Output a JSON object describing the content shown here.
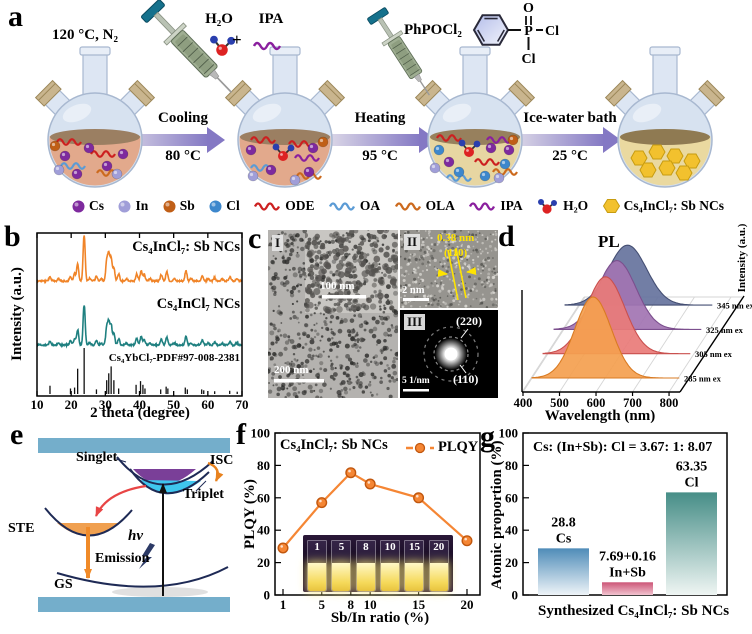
{
  "panels": {
    "a": "a",
    "b": "b",
    "c": "c",
    "d": "d",
    "e": "e",
    "f": "f",
    "g": "g"
  },
  "panel_a": {
    "condition": "120 °C, N₂",
    "h2o_label": "H₂O",
    "plus": "+",
    "ipa_label": "IPA",
    "phpocl2_label": "PhPOCl₂",
    "structure": {
      "o": "O",
      "p": "P",
      "cl_right": "Cl",
      "cl_down": "Cl"
    },
    "steps": [
      {
        "label": "Cooling",
        "temp": "80 °C"
      },
      {
        "label": "Heating",
        "temp": "95 °C"
      },
      {
        "label": "Ice-water bath",
        "temp": "25 °C"
      }
    ],
    "legend": [
      {
        "label": "Cs",
        "type": "sphere",
        "color": "#7e2a9e"
      },
      {
        "label": "In",
        "type": "sphere",
        "color": "#a09ed8"
      },
      {
        "label": "Sb",
        "type": "sphere",
        "color": "#c05f17"
      },
      {
        "label": "Cl",
        "type": "sphere",
        "color": "#3d87cc"
      },
      {
        "label": "ODE",
        "type": "wave",
        "color": "#cc2020"
      },
      {
        "label": "OA",
        "type": "wave",
        "color": "#5b9bd5"
      },
      {
        "label": "OLA",
        "type": "wave",
        "color": "#cc6a1e"
      },
      {
        "label": "IPA",
        "type": "wave",
        "color": "#8a1f9e"
      },
      {
        "label": "H₂O",
        "type": "h2o",
        "color": "#dd2222"
      },
      {
        "label": "Cs₄InCl₇: Sb NCs",
        "type": "hex",
        "color": "#f2c12e"
      }
    ]
  },
  "panel_c": {
    "roman1": "I",
    "roman2": "II",
    "roman3": "III",
    "scale_main": "200 nm",
    "scale_inner": "100 nm",
    "scale_hrtem": "2 nm",
    "scale_saed": "5 1/nm",
    "dspacing": "0.38 nm",
    "plane_110": "(110)",
    "plane_220": "(220)",
    "plane_110_saed": "(110)"
  },
  "panel_e": {
    "labels": {
      "singlet": "Singlet",
      "isc": "ISC",
      "triplet": "Triplet",
      "ste": "STE",
      "emission": "Emission",
      "gs": "GS",
      "hv": "hν"
    }
  },
  "panel_f": {
    "vial_labels": [
      "1",
      "5",
      "8",
      "10",
      "15",
      "20"
    ]
  },
  "chart_data": [
    {
      "id": "xrd",
      "type": "line",
      "xlabel": "2 theta (degree)",
      "ylabel": "Intensity (a.u.)",
      "xlim": [
        10,
        70
      ],
      "x_ticks": [
        10,
        20,
        30,
        40,
        50,
        60,
        70
      ],
      "series": [
        {
          "name": "Cs₄InCl₇: Sb NCs",
          "color": "#f08428",
          "peaks": [
            [
              13.8,
              0.1
            ],
            [
              16.3,
              0.05
            ],
            [
              19.8,
              0.1
            ],
            [
              21.0,
              0.16
            ],
            [
              21.9,
              0.38
            ],
            [
              23.8,
              1.0
            ],
            [
              25.4,
              0.06
            ],
            [
              27.4,
              0.1
            ],
            [
              28.8,
              0.05
            ],
            [
              30.4,
              0.42
            ],
            [
              31.0,
              0.55
            ],
            [
              31.7,
              0.5
            ],
            [
              32.5,
              0.28
            ],
            [
              33.9,
              0.16
            ],
            [
              36.2,
              0.05
            ],
            [
              39.2,
              0.16
            ],
            [
              40.5,
              0.22
            ],
            [
              41.4,
              0.14
            ],
            [
              43.1,
              0.05
            ],
            [
              46.4,
              0.14
            ],
            [
              48.0,
              0.2
            ],
            [
              50.2,
              0.05
            ],
            [
              53.6,
              0.22
            ],
            [
              55.1,
              0.05
            ],
            [
              58.4,
              0.12
            ],
            [
              60.1,
              0.05
            ],
            [
              62.0,
              0.07
            ],
            [
              64.2,
              0.04
            ],
            [
              66.5,
              0.08
            ],
            [
              68.5,
              0.06
            ]
          ]
        },
        {
          "name": "Cs₄InCl₇ NCs",
          "color": "#1f8080",
          "peaks": [
            [
              13.8,
              0.1
            ],
            [
              16.3,
              0.05
            ],
            [
              19.8,
              0.1
            ],
            [
              21.0,
              0.16
            ],
            [
              21.9,
              0.38
            ],
            [
              23.8,
              1.0
            ],
            [
              25.4,
              0.06
            ],
            [
              27.4,
              0.1
            ],
            [
              28.8,
              0.05
            ],
            [
              30.4,
              0.42
            ],
            [
              31.0,
              0.55
            ],
            [
              31.7,
              0.5
            ],
            [
              32.5,
              0.28
            ],
            [
              33.9,
              0.16
            ],
            [
              36.2,
              0.05
            ],
            [
              39.2,
              0.16
            ],
            [
              40.5,
              0.22
            ],
            [
              41.4,
              0.14
            ],
            [
              43.1,
              0.05
            ],
            [
              46.4,
              0.14
            ],
            [
              48.0,
              0.2
            ],
            [
              50.2,
              0.05
            ],
            [
              53.6,
              0.22
            ],
            [
              55.1,
              0.05
            ],
            [
              58.4,
              0.12
            ],
            [
              60.1,
              0.05
            ],
            [
              62.0,
              0.07
            ],
            [
              64.2,
              0.04
            ],
            [
              66.5,
              0.08
            ],
            [
              68.5,
              0.06
            ]
          ]
        },
        {
          "name": "Cs₄YbCl₇-PDF#97-008-2381",
          "color": "#111111",
          "style": "sticks",
          "peaks": [
            [
              13.8,
              0.18
            ],
            [
              19.8,
              0.12
            ],
            [
              21.0,
              0.14
            ],
            [
              21.9,
              0.55
            ],
            [
              23.8,
              1.0
            ],
            [
              27.4,
              0.1
            ],
            [
              30.4,
              0.3
            ],
            [
              31.0,
              0.45
            ],
            [
              31.7,
              0.6
            ],
            [
              32.5,
              0.3
            ],
            [
              33.9,
              0.12
            ],
            [
              39.0,
              0.2
            ],
            [
              40.3,
              0.28
            ],
            [
              41.0,
              0.2
            ],
            [
              41.6,
              0.12
            ],
            [
              46.2,
              0.1
            ],
            [
              47.8,
              0.16
            ],
            [
              48.3,
              0.12
            ],
            [
              53.4,
              0.14
            ],
            [
              54.0,
              0.1
            ],
            [
              58.2,
              0.1
            ],
            [
              58.8,
              0.08
            ],
            [
              62.0,
              0.06
            ],
            [
              66.4,
              0.07
            ],
            [
              68.6,
              0.05
            ]
          ]
        }
      ]
    },
    {
      "id": "pl",
      "type": "area",
      "title": "PL",
      "xlabel": "Wavelength (nm)",
      "ylabel": "Intensity (a.u.)",
      "xlim": [
        400,
        830
      ],
      "x_ticks": [
        400,
        500,
        600,
        700,
        800
      ],
      "series": [
        {
          "name": "285 nm ex",
          "color": "#f49f4f",
          "edge": "#d97b23",
          "peak_nm": 592,
          "sigma": 50,
          "amp": 1.0
        },
        {
          "name": "305 nm ex",
          "color": "#e97b78",
          "edge": "#c9504e",
          "peak_nm": 596,
          "sigma": 52,
          "amp": 0.95
        },
        {
          "name": "325 nm ex",
          "color": "#a274b2",
          "edge": "#7c4f8e",
          "peak_nm": 597,
          "sigma": 52,
          "amp": 0.85
        },
        {
          "name": "345 nm ex",
          "color": "#66739d",
          "edge": "#454f73",
          "peak_nm": 596,
          "sigma": 52,
          "amp": 0.74
        }
      ]
    },
    {
      "id": "plqy",
      "type": "line",
      "series_name": "PLQY",
      "annotation": "Cs₄InCl₇: Sb NCs",
      "xlabel": "Sb/In ratio (%)",
      "ylabel": "PLQY (%)",
      "x": [
        1,
        5,
        8,
        10,
        15,
        20
      ],
      "y": [
        29,
        57,
        75.5,
        68.5,
        60,
        33.5
      ],
      "ylim": [
        0,
        100
      ],
      "y_ticks": [
        0,
        20,
        40,
        60,
        80,
        100
      ],
      "color": "#f58634",
      "edge": "#c1570e"
    },
    {
      "id": "atomic",
      "type": "bar",
      "title": "Cs: (In+Sb): Cl = 3.67: 1: 8.07",
      "xlabel": "Synthesized Cs₄InCl₇: Sb NCs",
      "ylabel": "Atomic proportion (%)",
      "categories": [
        "Cs",
        "In+Sb",
        "Cl"
      ],
      "values": [
        28.8,
        7.85,
        63.35
      ],
      "value_labels": [
        "28.8",
        "7.69+0.16",
        "63.35"
      ],
      "ylim": [
        0,
        100
      ],
      "y_ticks": [
        0,
        20,
        40,
        60,
        80,
        100
      ],
      "colors_top": [
        "#4f8cb8",
        "#cc5577",
        "#468e87"
      ],
      "colors_bottom": [
        "#eef4f8",
        "#f2c3d0",
        "#eff5f3"
      ]
    }
  ]
}
